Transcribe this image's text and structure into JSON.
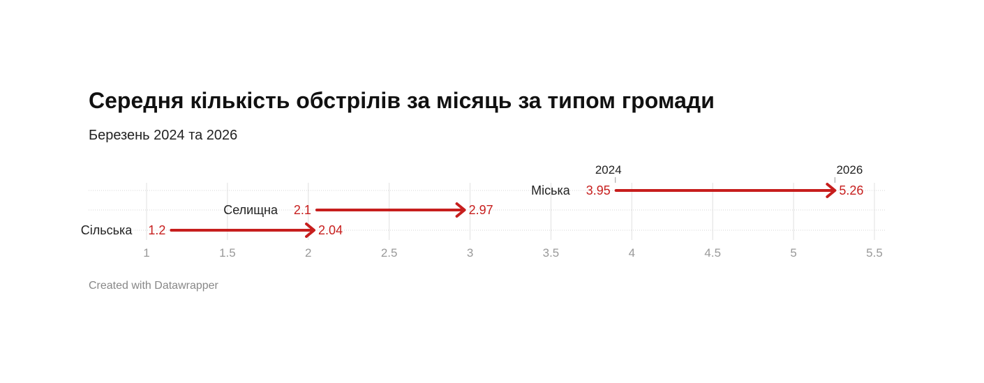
{
  "chart_data": {
    "type": "arrow",
    "title": "Середня кількість обстрілів за місяць за типом громади",
    "subtitle": "Березень 2024 та 2026",
    "footer": "Created with Datawrapper",
    "start_label": "2024",
    "end_label": "2026",
    "xlim": [
      1,
      5.5
    ],
    "xticks": [
      1,
      1.5,
      2,
      2.5,
      3,
      3.5,
      4,
      4.5,
      5,
      5.5
    ],
    "xtick_labels": [
      "1",
      "1.5",
      "2",
      "2.5",
      "3",
      "3.5",
      "4",
      "4.5",
      "5",
      "5.5"
    ],
    "categories": [
      "Міська",
      "Селищна",
      "Сільська"
    ],
    "start_values": [
      3.95,
      2.1,
      1.2
    ],
    "end_values": [
      5.26,
      2.97,
      2.04
    ],
    "start_value_labels": [
      "3.95",
      "2.1",
      "1.2"
    ],
    "end_value_labels": [
      "5.26",
      "2.97",
      "2.04"
    ],
    "grid": true,
    "arrow_color": "#c71e1d"
  }
}
